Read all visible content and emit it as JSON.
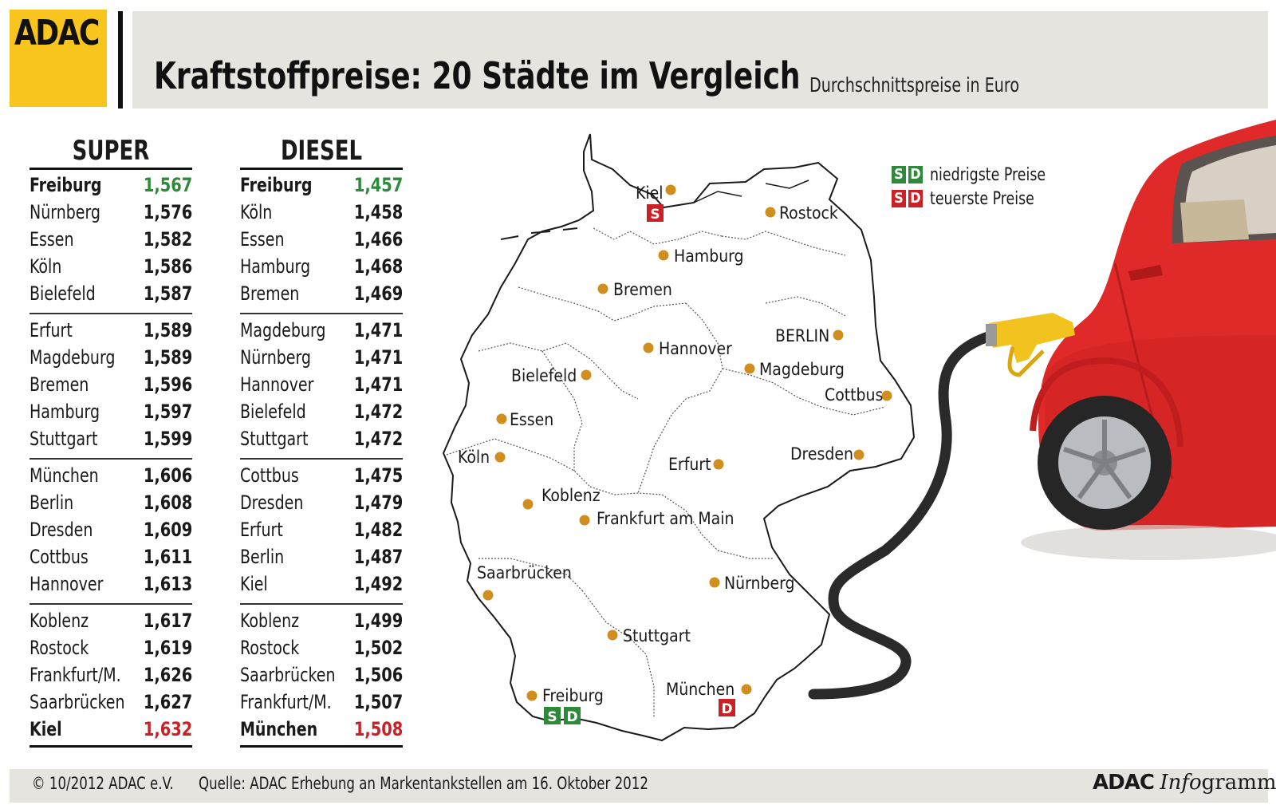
{
  "header": {
    "logo": "ADAC",
    "title": "Kraftstoffpreise: 20 Städte im Vergleich",
    "subtitle": "Durchschnittspreise in Euro"
  },
  "super": {
    "heading": "SUPER",
    "groups": [
      [
        [
          "Freiburg",
          "1,567"
        ],
        [
          "Nürnberg",
          "1,576"
        ],
        [
          "Essen",
          "1,582"
        ],
        [
          "Köln",
          "1,586"
        ],
        [
          "Bielefeld",
          "1,587"
        ]
      ],
      [
        [
          "Erfurt",
          "1,589"
        ],
        [
          "Magdeburg",
          "1,589"
        ],
        [
          "Bremen",
          "1,596"
        ],
        [
          "Hamburg",
          "1,597"
        ],
        [
          "Stuttgart",
          "1,599"
        ]
      ],
      [
        [
          "München",
          "1,606"
        ],
        [
          "Berlin",
          "1,608"
        ],
        [
          "Dresden",
          "1,609"
        ],
        [
          "Cottbus",
          "1,611"
        ],
        [
          "Hannover",
          "1,613"
        ]
      ],
      [
        [
          "Koblenz",
          "1,617"
        ],
        [
          "Rostock",
          "1,619"
        ],
        [
          "Frankfurt/M.",
          "1,626"
        ],
        [
          "Saarbrücken",
          "1,627"
        ],
        [
          "Kiel",
          "1,632"
        ]
      ]
    ]
  },
  "diesel": {
    "heading": "DIESEL",
    "groups": [
      [
        [
          "Freiburg",
          "1,457"
        ],
        [
          "Köln",
          "1,458"
        ],
        [
          "Essen",
          "1,466"
        ],
        [
          "Hamburg",
          "1,468"
        ],
        [
          "Bremen",
          "1,469"
        ]
      ],
      [
        [
          "Magdeburg",
          "1,471"
        ],
        [
          "Nürnberg",
          "1,471"
        ],
        [
          "Hannover",
          "1,471"
        ],
        [
          "Bielefeld",
          "1,472"
        ],
        [
          "Stuttgart",
          "1,472"
        ]
      ],
      [
        [
          "Cottbus",
          "1,475"
        ],
        [
          "Dresden",
          "1,479"
        ],
        [
          "Erfurt",
          "1,482"
        ],
        [
          "Berlin",
          "1,487"
        ],
        [
          "Kiel",
          "1,492"
        ]
      ],
      [
        [
          "Koblenz",
          "1,499"
        ],
        [
          "Rostock",
          "1,502"
        ],
        [
          "Saarbrücken",
          "1,506"
        ],
        [
          "Frankfurt/M.",
          "1,507"
        ],
        [
          "München",
          "1,508"
        ]
      ]
    ]
  },
  "legend": {
    "s": "S",
    "d": "D",
    "low_label": "niedrigste Preise",
    "high_label": "teuerste Preise",
    "low_color": "#2e8a3a",
    "high_color": "#cc2027"
  },
  "map": {
    "cities": {
      "kiel": "Kiel",
      "rostock": "Rostock",
      "hamburg": "Hamburg",
      "bremen": "Bremen",
      "hannover": "Hannover",
      "berlin": "BERLIN",
      "magdeburg": "Magdeburg",
      "bielefeld": "Bielefeld",
      "cottbus": "Cottbus",
      "essen": "Essen",
      "koeln": "Köln",
      "erfurt": "Erfurt",
      "dresden": "Dresden",
      "koblenz": "Koblenz",
      "frankfurt": "Frankfurt am Main",
      "saarbruecken": "Saarbrücken",
      "nuernberg": "Nürnberg",
      "stuttgart": "Stuttgart",
      "muenchen": "München",
      "freiburg": "Freiburg"
    },
    "dot_color": "#d08e1e"
  },
  "footer": {
    "copyright": "© 10/2012 ADAC e.V.",
    "source": "Quelle: ADAC Erhebung an Markentankstellen am 16. Oktober 2012",
    "brand_bold": "ADAC",
    "brand_italic": "Info",
    "brand_rest": "gramm"
  }
}
